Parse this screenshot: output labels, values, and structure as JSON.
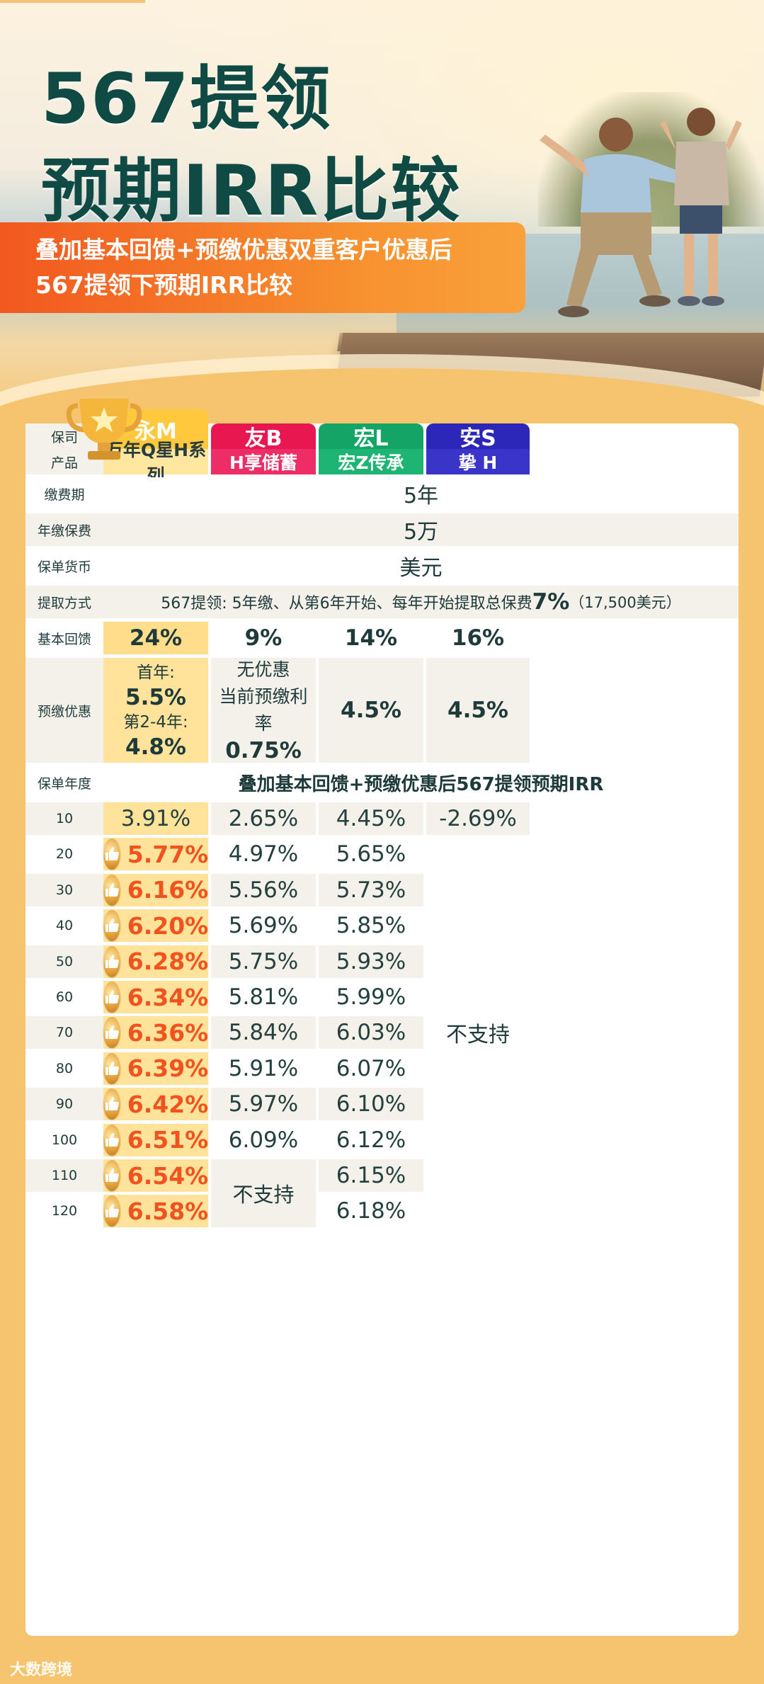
{
  "hero": {
    "title_line1": "567提领",
    "title_line2": "预期IRR比较",
    "subtitle_line1": "叠加基本回馈+预缴优惠双重客户优惠后",
    "subtitle_line2": "567提领下预期IRR比较"
  },
  "colors": {
    "yong": "#ffc83d",
    "you": "#e8174f",
    "hong": "#14a566",
    "an": "#2c27b8",
    "hot": "#f2521d"
  },
  "labels": {
    "company": "保司",
    "product": "产品",
    "pay_period": "缴费期",
    "annual_premium": "年缴保费",
    "currency": "保单货币",
    "withdraw_method": "提取方式",
    "basic_bonus": "基本回馈",
    "prepay_discount": "预缴优惠",
    "policy_year": "保单年度"
  },
  "companies": [
    {
      "name": "永M",
      "product": "万年Q星H系列"
    },
    {
      "name": "友B",
      "product": "H享储蓄"
    },
    {
      "name": "宏L",
      "product": "宏Z传承"
    },
    {
      "name": "安S",
      "product": "挚 H"
    }
  ],
  "shared": {
    "pay_period": "5年",
    "annual_premium": "5万",
    "currency": "美元",
    "withdraw_prefix": "567提领: 5年缴、从第6年开始、每年开始提取总保费",
    "withdraw_pct": "7%",
    "withdraw_suffix": "（17,500美元）",
    "irr_header": "叠加基本回馈+预缴优惠后567提领预期IRR"
  },
  "basic_bonus": [
    "24%",
    "9%",
    "14%",
    "16%"
  ],
  "prepay": {
    "yong_first_label": "首年:",
    "yong_first_value": "5.5%",
    "yong_later_label": "第2-4年:",
    "yong_later_value": "4.8%",
    "you_line1": "无优惠",
    "you_line2": "当前预缴利率",
    "you_value": "0.75%",
    "hong": "4.5%",
    "an": "4.5%"
  },
  "irr": {
    "years": [
      "10",
      "20",
      "30",
      "40",
      "50",
      "60",
      "70",
      "80",
      "90",
      "100",
      "110",
      "120"
    ],
    "yong": [
      "3.91%",
      "5.77%",
      "6.16%",
      "6.20%",
      "6.28%",
      "6.34%",
      "6.36%",
      "6.39%",
      "6.42%",
      "6.51%",
      "6.54%",
      "6.58%"
    ],
    "you": [
      "2.65%",
      "4.97%",
      "5.56%",
      "5.69%",
      "5.75%",
      "5.81%",
      "5.84%",
      "5.91%",
      "5.97%",
      "6.09%"
    ],
    "you_unsupported": "不支持",
    "hong": [
      "4.45%",
      "5.65%",
      "5.73%",
      "5.85%",
      "5.93%",
      "5.99%",
      "6.03%",
      "6.07%",
      "6.10%",
      "6.12%",
      "6.15%",
      "6.18%"
    ],
    "an_first": "-2.69%",
    "an_unsupported": "不支持"
  },
  "footer": {
    "watermark": "大数跨境"
  }
}
